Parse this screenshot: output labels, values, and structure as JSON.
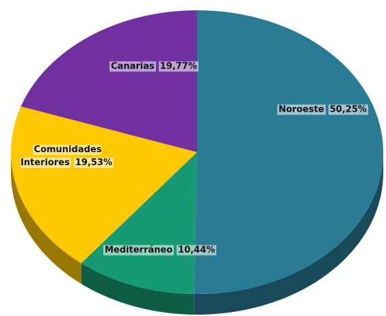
{
  "chart_data": {
    "type": "pie",
    "categories": [
      "Noroeste",
      "Mediterráneo",
      "Comunidades Interiores",
      "Canarias"
    ],
    "values": [
      50.25,
      10.44,
      19.53,
      19.77
    ],
    "value_labels": [
      "50,25%",
      "10,44%",
      "19,53%",
      "19,77%"
    ],
    "colors": [
      "#2a7b96",
      "#169a72",
      "#ffc800",
      "#7030a0"
    ]
  }
}
